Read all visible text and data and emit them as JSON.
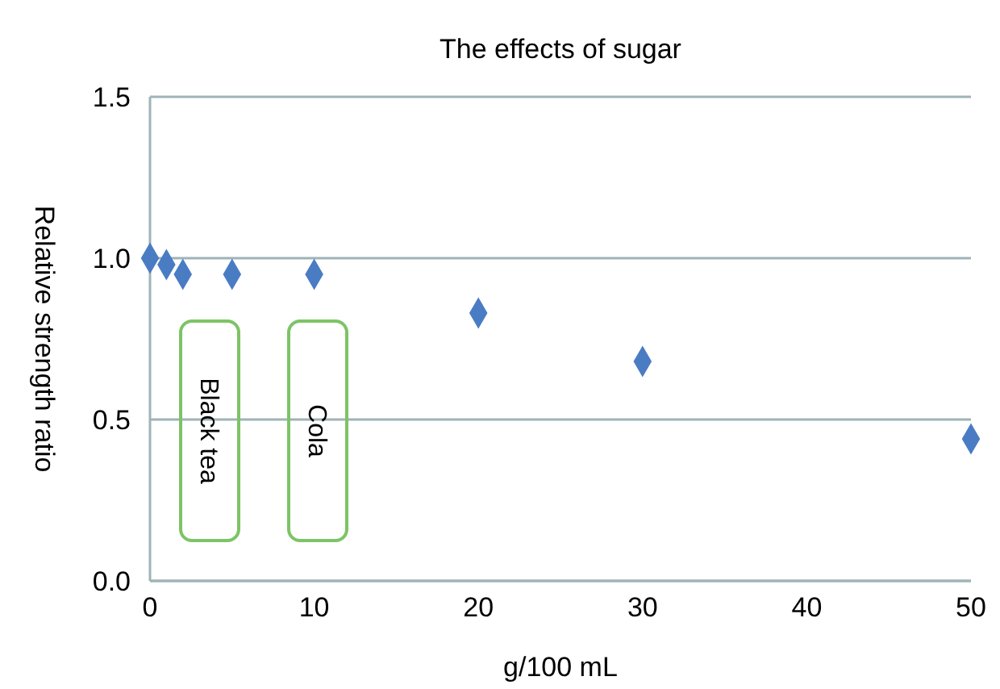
{
  "chart_data": {
    "type": "scatter",
    "title": "The effects of sugar",
    "xlabel": "g/100 mL",
    "ylabel": "Relative strength ratio",
    "x": [
      0,
      1,
      2,
      5,
      10,
      20,
      30,
      50
    ],
    "values": [
      1.0,
      0.98,
      0.95,
      0.95,
      0.95,
      0.83,
      0.68,
      0.44
    ],
    "color": "#4a7cc4",
    "marker": "diamond",
    "grid": "y",
    "xlim": [
      0,
      50
    ],
    "xticks": [
      0,
      10,
      20,
      30,
      40,
      50
    ],
    "ylim": [
      0,
      1.5
    ],
    "yticks": [
      {
        "value": 0,
        "label": "0.0"
      },
      {
        "value": 0.5,
        "label": "0.5"
      },
      {
        "value": 1,
        "label": "1.0"
      },
      {
        "value": 1.5,
        "label": "1.5"
      }
    ],
    "annotations": [
      "Black tea",
      "Cola"
    ]
  }
}
